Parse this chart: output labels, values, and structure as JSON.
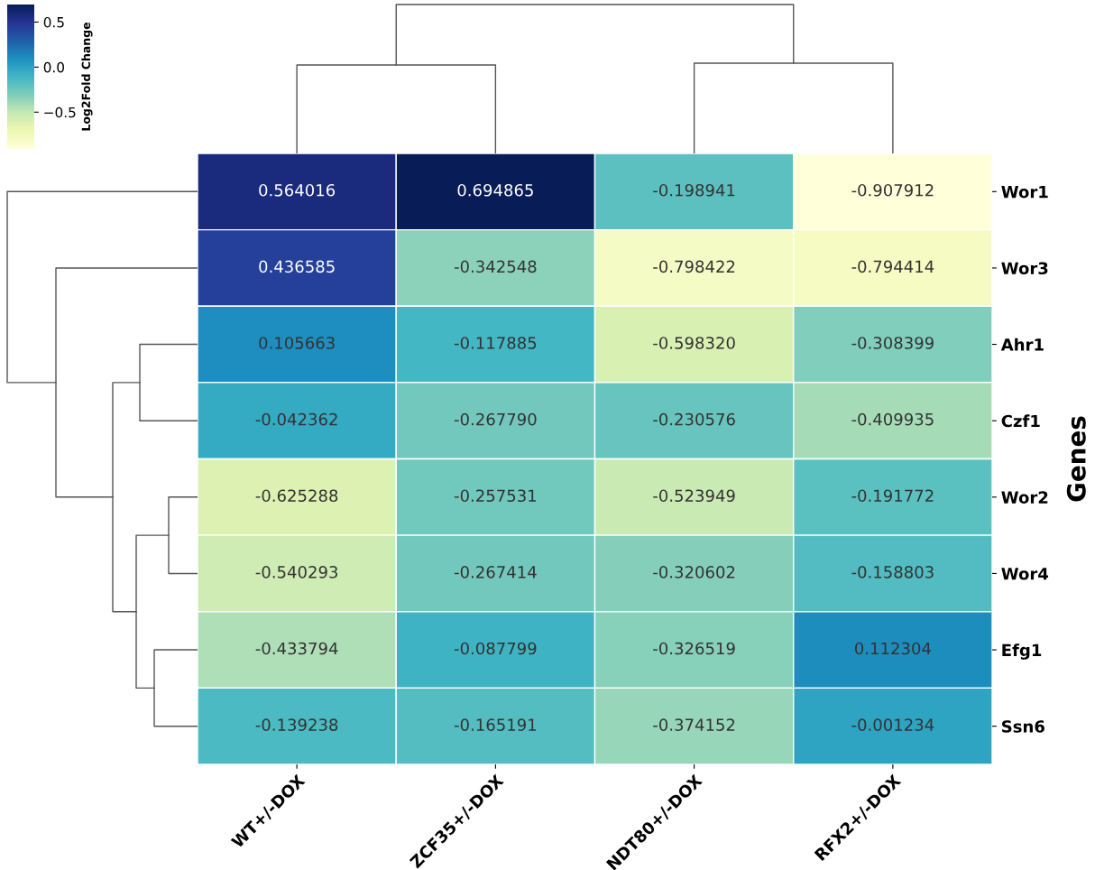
{
  "chart_data": {
    "type": "heatmap",
    "categories": [
      "WT+/-DOX",
      "ZCF35+/-DOX",
      "NDT80+/-DOX",
      "RFX2+/-DOX"
    ],
    "y_categories": [
      "Wor1",
      "Wor3",
      "Ahr1",
      "Czf1",
      "Wor2",
      "Wor4",
      "Efg1",
      "Ssn6"
    ],
    "cells": [
      [
        0.564016,
        0.694865,
        -0.198941,
        -0.907912
      ],
      [
        0.436585,
        -0.342548,
        -0.798422,
        -0.794414
      ],
      [
        0.105663,
        -0.117885,
        -0.59832,
        -0.308399
      ],
      [
        -0.042362,
        -0.26779,
        -0.230576,
        -0.409935
      ],
      [
        -0.625288,
        -0.257531,
        -0.523949,
        -0.191772
      ],
      [
        -0.540293,
        -0.267414,
        -0.320602,
        -0.158803
      ],
      [
        -0.433794,
        -0.087799,
        -0.326519,
        0.112304
      ],
      [
        -0.139238,
        -0.165191,
        -0.374152,
        -0.001234
      ]
    ],
    "cell_labels": [
      [
        "0.564016",
        "0.694865",
        "-0.198941",
        "-0.907912"
      ],
      [
        "0.436585",
        "-0.342548",
        "-0.798422",
        "-0.794414"
      ],
      [
        "0.105663",
        "-0.117885",
        "-0.598320",
        "-0.308399"
      ],
      [
        "-0.042362",
        "-0.267790",
        "-0.230576",
        "-0.409935"
      ],
      [
        "-0.625288",
        "-0.257531",
        "-0.523949",
        "-0.191772"
      ],
      [
        "-0.540293",
        "-0.267414",
        "-0.320602",
        "-0.158803"
      ],
      [
        "-0.433794",
        "-0.087799",
        "-0.326519",
        "0.112304"
      ],
      [
        "-0.139238",
        "-0.165191",
        "-0.374152",
        "-0.001234"
      ]
    ],
    "ylabel": "Genes",
    "clabel": "Log2Fold Change",
    "clim": [
      -0.907912,
      0.694865
    ],
    "cticks": [
      {
        "value": -0.5,
        "label": "−0.5"
      },
      {
        "value": 0,
        "label": "0.0"
      },
      {
        "value": 0.5,
        "label": "0.5"
      }
    ]
  }
}
